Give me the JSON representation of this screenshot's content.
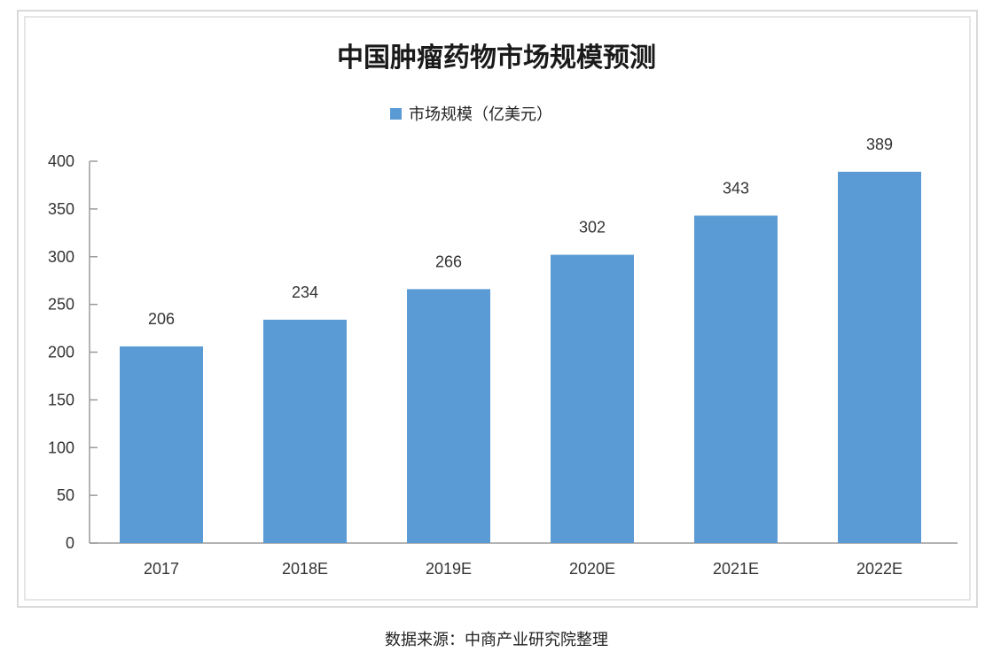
{
  "chart_data": {
    "type": "bar",
    "title": "中国肿瘤药物市场规模预测",
    "categories": [
      "2017",
      "2018E",
      "2019E",
      "2020E",
      "2021E",
      "2022E"
    ],
    "series": [
      {
        "name": "市场规模（亿美元）",
        "values": [
          206,
          234,
          266,
          302,
          343,
          389
        ],
        "color": "#5b9bd5"
      }
    ],
    "ylim": [
      0,
      400
    ],
    "yticks": [
      0,
      50,
      100,
      150,
      200,
      250,
      300,
      350,
      400
    ],
    "grid": false,
    "legend": "top-center",
    "data_labels": true
  },
  "source": "数据来源：中商产业研究院整理"
}
